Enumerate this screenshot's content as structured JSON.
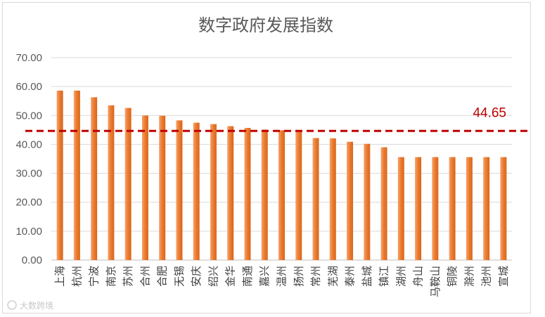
{
  "chart_data": {
    "type": "bar",
    "title": "数字政府发展指数",
    "xlabel": "",
    "ylabel": "",
    "ylim": [
      0,
      70
    ],
    "yticks": [
      "0.00",
      "10.00",
      "20.00",
      "30.00",
      "40.00",
      "50.00",
      "60.00",
      "70.00"
    ],
    "categories": [
      "上海",
      "杭州",
      "宁波",
      "南京",
      "苏州",
      "合州",
      "合肥",
      "无锡",
      "安庆",
      "绍兴",
      "金华",
      "南通",
      "嘉兴",
      "温州",
      "扬州",
      "常州",
      "芜湖",
      "泰州",
      "盐城",
      "镇江",
      "湖州",
      "舟山",
      "马鞍山",
      "铜陵",
      "滁州",
      "池州",
      "宣城"
    ],
    "values": [
      58.6,
      58.6,
      56.3,
      53.5,
      52.6,
      50.0,
      49.9,
      48.3,
      47.5,
      47.0,
      46.3,
      45.7,
      45.1,
      44.9,
      44.6,
      42.2,
      42.1,
      40.9,
      40.2,
      39.0,
      35.6,
      35.6,
      35.6,
      35.6,
      35.6,
      35.6,
      35.6
    ],
    "reference_line": {
      "value": 44.65,
      "label": "44.65"
    },
    "grid": true,
    "legend": "none",
    "bar_color": "#ed7d31",
    "reference_color": "#c00000"
  },
  "watermark": {
    "text": "大数跨境",
    "icon": "sun-logo-icon"
  }
}
